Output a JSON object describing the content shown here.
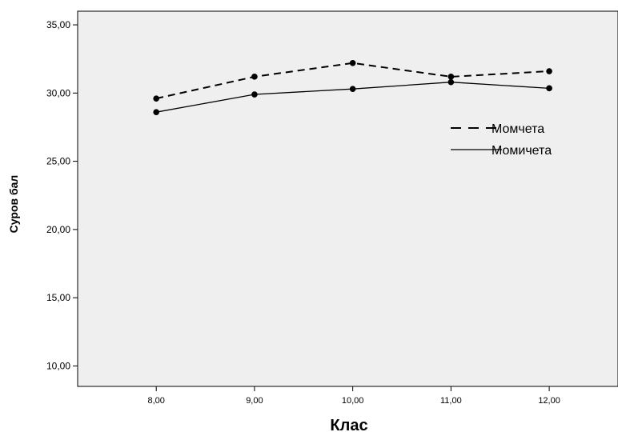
{
  "chart_data": {
    "type": "line",
    "xlabel": "Клас",
    "ylabel": "Суров бал",
    "x": [
      8,
      9,
      10,
      11,
      12
    ],
    "xtick_labels": [
      "8,00",
      "9,00",
      "10,00",
      "11,00",
      "12,00"
    ],
    "yticks": [
      10,
      15,
      20,
      25,
      30,
      35
    ],
    "ytick_labels": [
      "10,00",
      "15,00",
      "20,00",
      "25,00",
      "30,00",
      "35,00"
    ],
    "xlim": [
      7.2,
      12.7
    ],
    "ylim": [
      8.5,
      36.0
    ],
    "grid": false,
    "legend_position": "right",
    "series": [
      {
        "name": "Момчета",
        "values": [
          29.6,
          31.2,
          32.2,
          31.2,
          31.6
        ],
        "line_style": "dashed",
        "color": "#000000"
      },
      {
        "name": "Момичета",
        "values": [
          28.6,
          29.9,
          30.3,
          30.8,
          30.35
        ],
        "line_style": "solid",
        "color": "#000000"
      }
    ],
    "plot_background": "#efefef"
  }
}
